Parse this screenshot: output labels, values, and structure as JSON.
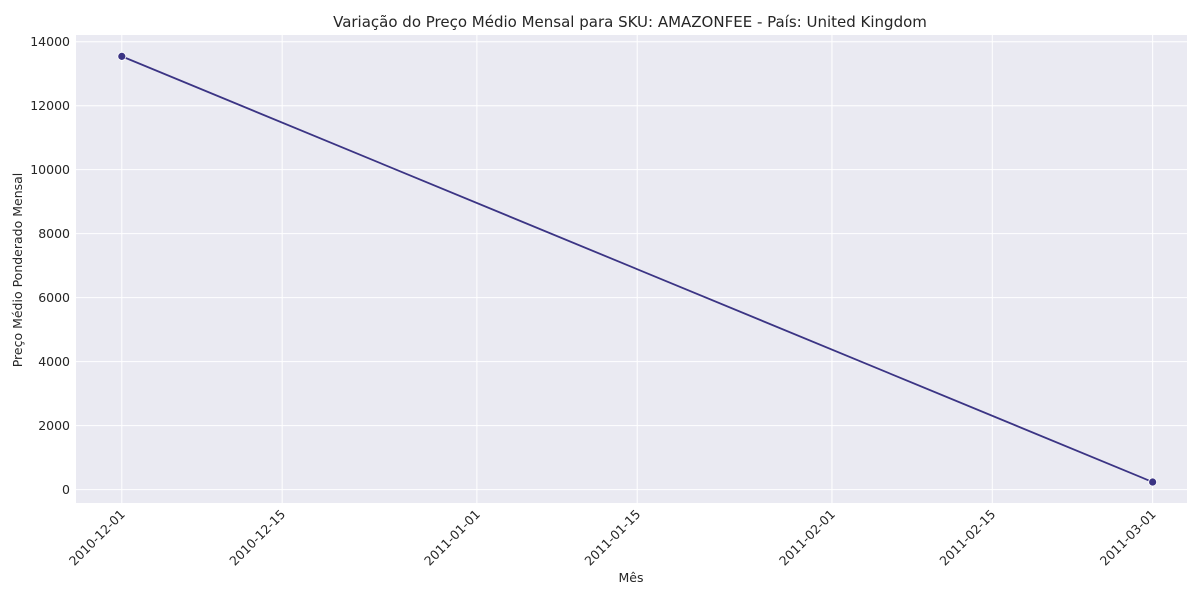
{
  "chart_data": {
    "type": "line",
    "title": "Variação do Preço Médio Mensal para SKU: AMAZONFEE - País: United Kingdom",
    "xlabel": "Mês",
    "ylabel": "Preço Médio Ponderado Mensal",
    "x_tick_labels": [
      "2010-12-01",
      "2010-12-15",
      "2011-01-01",
      "2011-01-15",
      "2011-02-01",
      "2011-02-15",
      "2011-03-01"
    ],
    "y_tick_labels": [
      "0",
      "2000",
      "4000",
      "6000",
      "8000",
      "10000",
      "12000",
      "14000"
    ],
    "y_ticks": [
      0,
      2000,
      4000,
      6000,
      8000,
      10000,
      12000,
      14000
    ],
    "xlim": [
      "2010-11-27",
      "2011-03-04"
    ],
    "ylim": [
      -420,
      14210
    ],
    "series": [
      {
        "x": [
          "2010-12-01",
          "2011-03-01"
        ],
        "values": [
          13541.33,
          235.68
        ]
      }
    ],
    "grid": true,
    "background_color": "#eaeaf2",
    "grid_color": "#ffffff",
    "line_color": "#3b3484",
    "marker": "circle"
  }
}
